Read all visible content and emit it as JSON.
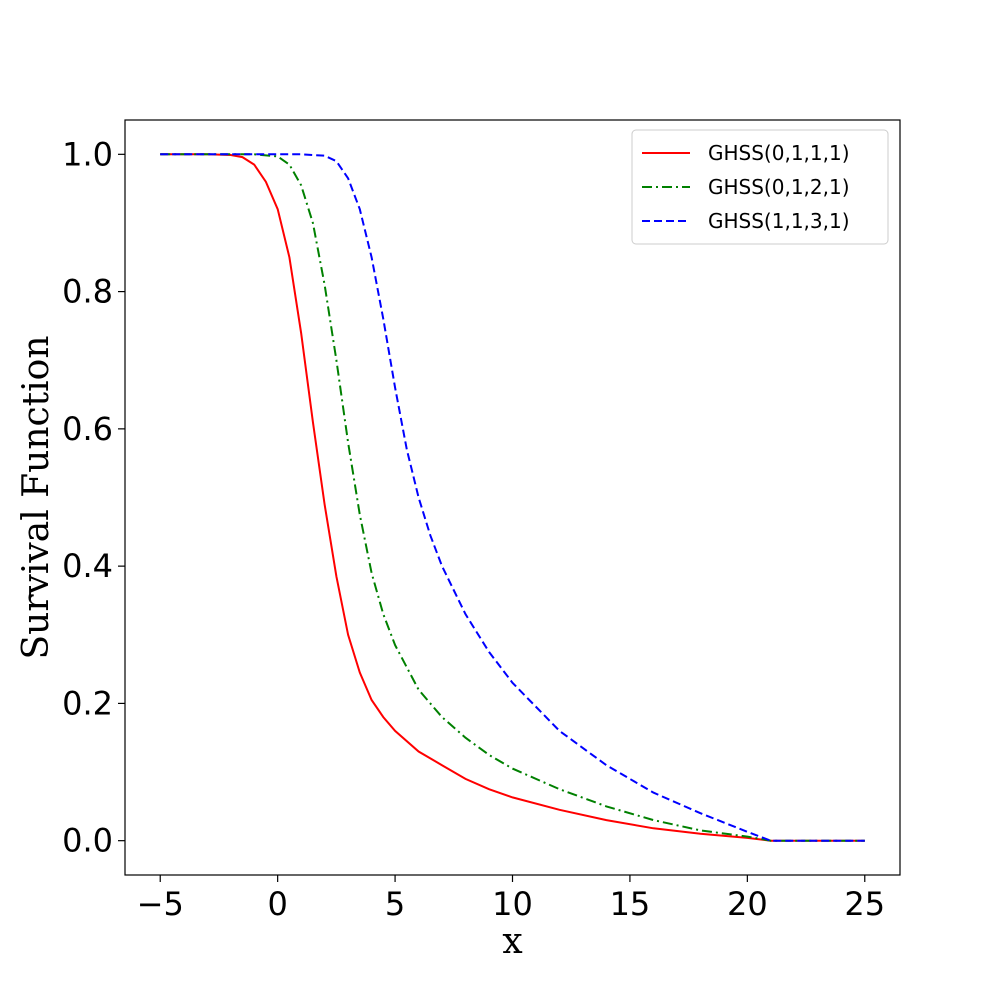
{
  "chart_data": {
    "type": "line",
    "title": "",
    "xlabel": "x",
    "ylabel": "Survival Function",
    "xlim": [
      -6.5,
      26.5
    ],
    "ylim": [
      -0.05,
      1.05
    ],
    "xticks": [
      -5,
      0,
      5,
      10,
      15,
      20,
      25
    ],
    "xtick_labels": [
      "−5",
      "0",
      "5",
      "10",
      "15",
      "20",
      "25"
    ],
    "yticks": [
      0.0,
      0.2,
      0.4,
      0.6,
      0.8,
      1.0
    ],
    "ytick_labels": [
      "0.0",
      "0.2",
      "0.4",
      "0.6",
      "0.8",
      "1.0"
    ],
    "grid": false,
    "legend_position": "top-right",
    "series": [
      {
        "name": "GHSS(0,1,1,1)",
        "color": "#ff0000",
        "style": "solid",
        "x": [
          -5,
          -3,
          -2,
          -1.5,
          -1,
          -0.5,
          0,
          0.5,
          1,
          1.5,
          2,
          2.5,
          3,
          3.5,
          4,
          4.5,
          5,
          6,
          7,
          8,
          9,
          10,
          12,
          14,
          16,
          18,
          20,
          21,
          25
        ],
        "y": [
          1.0,
          1.0,
          0.999,
          0.996,
          0.985,
          0.96,
          0.92,
          0.85,
          0.74,
          0.61,
          0.49,
          0.385,
          0.3,
          0.245,
          0.205,
          0.18,
          0.16,
          0.13,
          0.11,
          0.09,
          0.075,
          0.063,
          0.045,
          0.03,
          0.018,
          0.01,
          0.004,
          0.0,
          0.0
        ]
      },
      {
        "name": "GHSS(0,1,2,1)",
        "color": "#008000",
        "style": "dashdot",
        "x": [
          -5,
          -1,
          0,
          0.5,
          1,
          1.5,
          2,
          2.5,
          3,
          3.5,
          4,
          4.5,
          5,
          6,
          7,
          8,
          9,
          10,
          12,
          14,
          16,
          18,
          20,
          21,
          25
        ],
        "y": [
          1.0,
          1.0,
          0.997,
          0.985,
          0.955,
          0.9,
          0.81,
          0.7,
          0.58,
          0.475,
          0.39,
          0.33,
          0.285,
          0.22,
          0.18,
          0.15,
          0.125,
          0.105,
          0.075,
          0.05,
          0.03,
          0.015,
          0.006,
          0.0,
          0.0
        ]
      },
      {
        "name": "GHSS(1,1,3,1)",
        "color": "#0000ff",
        "style": "dashed",
        "x": [
          -5,
          1,
          2,
          2.5,
          3,
          3.5,
          4,
          4.5,
          5,
          5.5,
          6,
          6.5,
          7,
          8,
          9,
          10,
          12,
          14,
          16,
          18,
          20,
          21,
          25
        ],
        "y": [
          1.0,
          1.0,
          0.998,
          0.99,
          0.965,
          0.92,
          0.85,
          0.76,
          0.66,
          0.57,
          0.5,
          0.445,
          0.4,
          0.33,
          0.275,
          0.23,
          0.16,
          0.11,
          0.07,
          0.04,
          0.013,
          0.0,
          0.0
        ]
      }
    ]
  }
}
